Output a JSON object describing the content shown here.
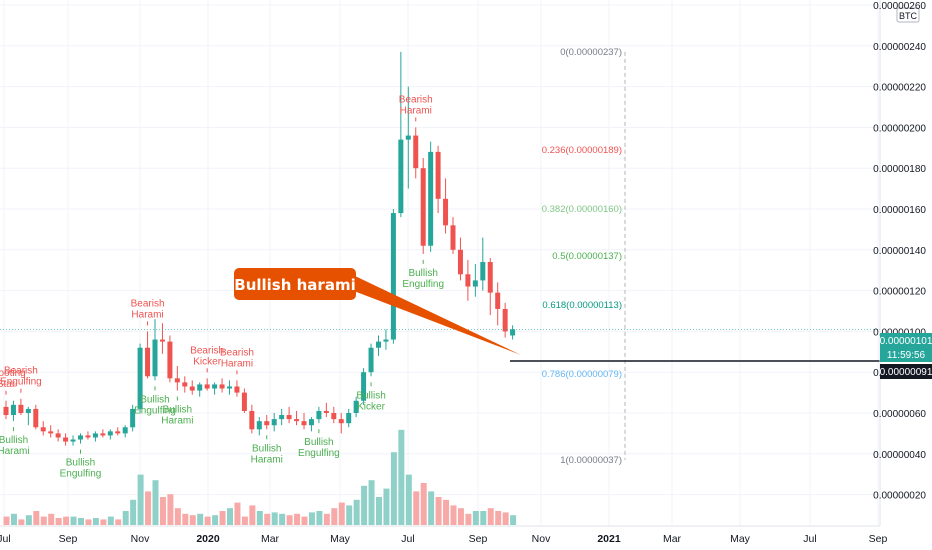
{
  "chart_data": {
    "type": "candlestick",
    "quote_unit": "BTC",
    "y_scale": "linear",
    "ylim": [
      1e-07,
      2.6e-06
    ],
    "y_ticks": [
      "0.00000020",
      "0.00000040",
      "0.00000060",
      "0.00000080",
      "0.00000100",
      "0.00000120",
      "0.00000140",
      "0.00000160",
      "0.00000180",
      "0.00000200",
      "0.00000220",
      "0.00000240",
      "0.00000260"
    ],
    "x_ticks": [
      "Jul",
      "Sep",
      "Nov",
      "2020",
      "Mar",
      "May",
      "Jul",
      "Sep",
      "Nov",
      "2021",
      "Mar",
      "May",
      "Jul",
      "Sep"
    ],
    "last_price_label": "0.00000101",
    "countdown_label": "11:59:56",
    "crosshair_price_label": "0.00000091",
    "colors": {
      "up": "#26a69a",
      "down": "#ef5350",
      "up_volume": "#8fd1c8",
      "down_volume": "#f7a9a7",
      "callout": "#e65100",
      "crosshair_label": "#131722"
    },
    "candles": [
      {
        "o": 6.3e-07,
        "h": 6.6e-07,
        "l": 5.7e-07,
        "c": 5.9e-07
      },
      {
        "o": 5.9e-07,
        "h": 6.6e-07,
        "l": 5.6e-07,
        "c": 6.4e-07
      },
      {
        "o": 6.4e-07,
        "h": 6.7e-07,
        "l": 5.9e-07,
        "c": 6e-07
      },
      {
        "o": 6e-07,
        "h": 6.3e-07,
        "l": 5.4e-07,
        "c": 6.2e-07
      },
      {
        "o": 6.2e-07,
        "h": 6.4e-07,
        "l": 5.2e-07,
        "c": 5.3e-07
      },
      {
        "o": 5.3e-07,
        "h": 5.6e-07,
        "l": 4.9e-07,
        "c": 5.1e-07
      },
      {
        "o": 5.1e-07,
        "h": 5.4e-07,
        "l": 4.8e-07,
        "c": 5e-07
      },
      {
        "o": 5e-07,
        "h": 5.2e-07,
        "l": 4.6e-07,
        "c": 4.8e-07
      },
      {
        "o": 4.8e-07,
        "h": 5e-07,
        "l": 4.4e-07,
        "c": 4.6e-07
      },
      {
        "o": 4.6e-07,
        "h": 4.9e-07,
        "l": 4.4e-07,
        "c": 4.7e-07
      },
      {
        "o": 4.7e-07,
        "h": 5e-07,
        "l": 4.5e-07,
        "c": 4.9e-07
      },
      {
        "o": 4.9e-07,
        "h": 5.1e-07,
        "l": 4.7e-07,
        "c": 4.8e-07
      },
      {
        "o": 4.8e-07,
        "h": 5.1e-07,
        "l": 4.6e-07,
        "c": 5e-07
      },
      {
        "o": 5e-07,
        "h": 5.2e-07,
        "l": 4.8e-07,
        "c": 4.9e-07
      },
      {
        "o": 4.9e-07,
        "h": 5.2e-07,
        "l": 4.7e-07,
        "c": 5.1e-07
      },
      {
        "o": 5.1e-07,
        "h": 5.3e-07,
        "l": 4.9e-07,
        "c": 5e-07
      },
      {
        "o": 5e-07,
        "h": 5.4e-07,
        "l": 4.8e-07,
        "c": 5.3e-07
      },
      {
        "o": 5.3e-07,
        "h": 6.4e-07,
        "l": 5.1e-07,
        "c": 6.2e-07
      },
      {
        "o": 6.2e-07,
        "h": 9.4e-07,
        "l": 6e-07,
        "c": 9.2e-07
      },
      {
        "o": 9.2e-07,
        "h": 1e-06,
        "l": 7.7e-07,
        "c": 7.8e-07
      },
      {
        "o": 7.8e-07,
        "h": 1.06e-06,
        "l": 7.6e-07,
        "c": 9.6e-07
      },
      {
        "o": 9.6e-07,
        "h": 1.04e-06,
        "l": 8.9e-07,
        "c": 9.5e-07
      },
      {
        "o": 9.5e-07,
        "h": 9.8e-07,
        "l": 7.5e-07,
        "c": 7.7e-07
      },
      {
        "o": 7.7e-07,
        "h": 8.3e-07,
        "l": 7.1e-07,
        "c": 7.5e-07
      },
      {
        "o": 7.5e-07,
        "h": 7.8e-07,
        "l": 7e-07,
        "c": 7.3e-07
      },
      {
        "o": 7.3e-07,
        "h": 7.6e-07,
        "l": 6.9e-07,
        "c": 7.1e-07
      },
      {
        "o": 7.1e-07,
        "h": 7.5e-07,
        "l": 6.8e-07,
        "c": 7.4e-07
      },
      {
        "o": 7.4e-07,
        "h": 7.7e-07,
        "l": 7.1e-07,
        "c": 7.2e-07
      },
      {
        "o": 7.2e-07,
        "h": 7.5e-07,
        "l": 6.9e-07,
        "c": 7.4e-07
      },
      {
        "o": 7.4e-07,
        "h": 7.7e-07,
        "l": 7e-07,
        "c": 7.2e-07
      },
      {
        "o": 7.2e-07,
        "h": 7.6e-07,
        "l": 6.9e-07,
        "c": 7.3e-07
      },
      {
        "o": 7.3e-07,
        "h": 7.6e-07,
        "l": 6.8e-07,
        "c": 7e-07
      },
      {
        "o": 7e-07,
        "h": 7.2e-07,
        "l": 6e-07,
        "c": 6.1e-07
      },
      {
        "o": 6.1e-07,
        "h": 6.4e-07,
        "l": 5e-07,
        "c": 5.2e-07
      },
      {
        "o": 5.2e-07,
        "h": 5.8e-07,
        "l": 4.9e-07,
        "c": 5.6e-07
      },
      {
        "o": 5.6e-07,
        "h": 5.9e-07,
        "l": 5.2e-07,
        "c": 5.4e-07
      },
      {
        "o": 5.4e-07,
        "h": 6e-07,
        "l": 5.1e-07,
        "c": 5.7e-07
      },
      {
        "o": 5.7e-07,
        "h": 6.2e-07,
        "l": 5.4e-07,
        "c": 5.9e-07
      },
      {
        "o": 5.9e-07,
        "h": 6.3e-07,
        "l": 5.5e-07,
        "c": 5.7e-07
      },
      {
        "o": 5.7e-07,
        "h": 6.1e-07,
        "l": 5.4e-07,
        "c": 5.6e-07
      },
      {
        "o": 5.6e-07,
        "h": 6e-07,
        "l": 5.2e-07,
        "c": 5.4e-07
      },
      {
        "o": 5.4e-07,
        "h": 5.8e-07,
        "l": 5.1e-07,
        "c": 5.7e-07
      },
      {
        "o": 5.7e-07,
        "h": 6.3e-07,
        "l": 5.5e-07,
        "c": 6.1e-07
      },
      {
        "o": 6.1e-07,
        "h": 6.5e-07,
        "l": 5.8e-07,
        "c": 6e-07
      },
      {
        "o": 6e-07,
        "h": 6.3e-07,
        "l": 5.5e-07,
        "c": 5.7e-07
      },
      {
        "o": 5.7e-07,
        "h": 6e-07,
        "l": 5e-07,
        "c": 5.5e-07
      },
      {
        "o": 5.5e-07,
        "h": 6.2e-07,
        "l": 5.3e-07,
        "c": 6e-07
      },
      {
        "o": 6e-07,
        "h": 6.8e-07,
        "l": 5.8e-07,
        "c": 6.6e-07
      },
      {
        "o": 6.6e-07,
        "h": 8.2e-07,
        "l": 6.4e-07,
        "c": 8e-07
      },
      {
        "o": 8e-07,
        "h": 9.4e-07,
        "l": 7.8e-07,
        "c": 9.2e-07
      },
      {
        "o": 9.2e-07,
        "h": 9.8e-07,
        "l": 8.8e-07,
        "c": 9.5e-07
      },
      {
        "o": 9.5e-07,
        "h": 1.01e-06,
        "l": 9.1e-07,
        "c": 9.6e-07
      },
      {
        "o": 9.6e-07,
        "h": 1.6e-06,
        "l": 9.4e-07,
        "c": 1.58e-06
      },
      {
        "o": 1.58e-06,
        "h": 2.37e-06,
        "l": 1.56e-06,
        "c": 1.94e-06
      },
      {
        "o": 1.94e-06,
        "h": 2.2e-06,
        "l": 1.7e-06,
        "c": 1.96e-06
      },
      {
        "o": 1.96e-06,
        "h": 2e-06,
        "l": 1.75e-06,
        "c": 1.8e-06
      },
      {
        "o": 1.8e-06,
        "h": 1.85e-06,
        "l": 1.38e-06,
        "c": 1.42e-06
      },
      {
        "o": 1.42e-06,
        "h": 1.93e-06,
        "l": 1.39e-06,
        "c": 1.88e-06
      },
      {
        "o": 1.88e-06,
        "h": 1.91e-06,
        "l": 1.58e-06,
        "c": 1.65e-06
      },
      {
        "o": 1.65e-06,
        "h": 1.75e-06,
        "l": 1.48e-06,
        "c": 1.52e-06
      },
      {
        "o": 1.52e-06,
        "h": 1.56e-06,
        "l": 1.38e-06,
        "c": 1.4e-06
      },
      {
        "o": 1.4e-06,
        "h": 1.46e-06,
        "l": 1.25e-06,
        "c": 1.28e-06
      },
      {
        "o": 1.28e-06,
        "h": 1.35e-06,
        "l": 1.15e-06,
        "c": 1.22e-06
      },
      {
        "o": 1.22e-06,
        "h": 1.33e-06,
        "l": 1.17e-06,
        "c": 1.25e-06
      },
      {
        "o": 1.25e-06,
        "h": 1.46e-06,
        "l": 1.2e-06,
        "c": 1.34e-06
      },
      {
        "o": 1.34e-06,
        "h": 1.36e-06,
        "l": 1.08e-06,
        "c": 1.19e-06
      },
      {
        "o": 1.19e-06,
        "h": 1.24e-06,
        "l": 1.03e-06,
        "c": 1.11e-06
      },
      {
        "o": 1.11e-06,
        "h": 1.14e-06,
        "l": 9.7e-07,
        "c": 1e-06
      },
      {
        "o": 9.8e-07,
        "h": 1.03e-06,
        "l": 9.6e-07,
        "c": 1.01e-06
      }
    ],
    "volume": [
      {
        "v": 0.3,
        "up": false
      },
      {
        "v": 0.4,
        "up": true
      },
      {
        "v": 0.2,
        "up": false
      },
      {
        "v": 0.35,
        "up": true
      },
      {
        "v": 0.5,
        "up": false
      },
      {
        "v": 0.3,
        "up": false
      },
      {
        "v": 0.4,
        "up": false
      },
      {
        "v": 0.25,
        "up": false
      },
      {
        "v": 0.3,
        "up": false
      },
      {
        "v": 0.3,
        "up": true
      },
      {
        "v": 0.25,
        "up": true
      },
      {
        "v": 0.2,
        "up": false
      },
      {
        "v": 0.25,
        "up": true
      },
      {
        "v": 0.2,
        "up": false
      },
      {
        "v": 0.3,
        "up": true
      },
      {
        "v": 0.2,
        "up": false
      },
      {
        "v": 0.5,
        "up": true
      },
      {
        "v": 0.9,
        "up": true
      },
      {
        "v": 1.8,
        "up": true
      },
      {
        "v": 1.2,
        "up": false
      },
      {
        "v": 1.6,
        "up": true
      },
      {
        "v": 1.0,
        "up": false
      },
      {
        "v": 1.1,
        "up": false
      },
      {
        "v": 0.6,
        "up": false
      },
      {
        "v": 0.4,
        "up": false
      },
      {
        "v": 0.35,
        "up": false
      },
      {
        "v": 0.4,
        "up": true
      },
      {
        "v": 0.3,
        "up": false
      },
      {
        "v": 0.35,
        "up": true
      },
      {
        "v": 0.5,
        "up": false
      },
      {
        "v": 0.6,
        "up": true
      },
      {
        "v": 0.8,
        "up": false
      },
      {
        "v": 0.3,
        "up": false
      },
      {
        "v": 0.7,
        "up": false
      },
      {
        "v": 0.5,
        "up": true
      },
      {
        "v": 0.4,
        "up": false
      },
      {
        "v": 0.45,
        "up": true
      },
      {
        "v": 0.4,
        "up": true
      },
      {
        "v": 0.35,
        "up": false
      },
      {
        "v": 0.4,
        "up": false
      },
      {
        "v": 0.3,
        "up": false
      },
      {
        "v": 0.45,
        "up": true
      },
      {
        "v": 0.5,
        "up": true
      },
      {
        "v": 0.4,
        "up": false
      },
      {
        "v": 0.6,
        "up": false
      },
      {
        "v": 0.8,
        "up": false
      },
      {
        "v": 0.7,
        "up": true
      },
      {
        "v": 0.9,
        "up": true
      },
      {
        "v": 1.4,
        "up": true
      },
      {
        "v": 1.6,
        "up": true
      },
      {
        "v": 1.0,
        "up": true
      },
      {
        "v": 1.3,
        "up": true
      },
      {
        "v": 2.6,
        "up": true
      },
      {
        "v": 3.4,
        "up": true
      },
      {
        "v": 1.8,
        "up": true
      },
      {
        "v": 1.2,
        "up": false
      },
      {
        "v": 1.5,
        "up": false
      },
      {
        "v": 1.2,
        "up": true
      },
      {
        "v": 1.0,
        "up": false
      },
      {
        "v": 0.9,
        "up": false
      },
      {
        "v": 0.7,
        "up": false
      },
      {
        "v": 0.6,
        "up": false
      },
      {
        "v": 0.4,
        "up": false
      },
      {
        "v": 0.5,
        "up": true
      },
      {
        "v": 0.5,
        "up": true
      },
      {
        "v": 0.6,
        "up": false
      },
      {
        "v": 0.5,
        "up": false
      },
      {
        "v": 0.45,
        "up": false
      },
      {
        "v": 0.35,
        "up": true
      }
    ],
    "fib_levels": [
      {
        "label": "0(0.00000237)",
        "price": 2.37e-06,
        "color": "#787b86"
      },
      {
        "label": "0.236(0.00000189)",
        "price": 1.89e-06,
        "color": "#ef5350"
      },
      {
        "label": "0.382(0.00000160)",
        "price": 1.6e-06,
        "color": "#81c784"
      },
      {
        "label": "0.5(0.00000137)",
        "price": 1.37e-06,
        "color": "#4caf50"
      },
      {
        "label": "0.618(0.00000113)",
        "price": 1.13e-06,
        "color": "#089981"
      },
      {
        "label": "0.786(0.00000079)",
        "price": 7.9e-07,
        "color": "#64b5f6"
      },
      {
        "label": "1(0.00000037)",
        "price": 3.7e-07,
        "color": "#787b86"
      }
    ],
    "patterns": [
      {
        "lines": [
          "Shooting",
          "Star"
        ],
        "candle": 0,
        "pos": "above",
        "bearish": true
      },
      {
        "lines": [
          "Bearish",
          "Engulfing"
        ],
        "candle": 2,
        "pos": "above",
        "bearish": true
      },
      {
        "lines": [
          "Bullish",
          "Harami"
        ],
        "candle": 1,
        "pos": "below",
        "bearish": false
      },
      {
        "lines": [
          "Bullish",
          "Engulfing"
        ],
        "candle": 10,
        "pos": "below",
        "bearish": false
      },
      {
        "lines": [
          "Bearish",
          "Harami"
        ],
        "candle": 19,
        "pos": "above",
        "bearish": true
      },
      {
        "lines": [
          "Bullish",
          "Engulfing"
        ],
        "candle": 20,
        "pos": "below",
        "bearish": false
      },
      {
        "lines": [
          "Bullish",
          "Harami"
        ],
        "candle": 23,
        "pos": "below",
        "bearish": false
      },
      {
        "lines": [
          "Bearish",
          "Kicker"
        ],
        "candle": 27,
        "pos": "above",
        "bearish": true
      },
      {
        "lines": [
          "Bearish",
          "Harami"
        ],
        "candle": 31,
        "pos": "above",
        "bearish": true
      },
      {
        "lines": [
          "Bullish",
          "Harami"
        ],
        "candle": 35,
        "pos": "below",
        "bearish": false
      },
      {
        "lines": [
          "Bullish",
          "Engulfing"
        ],
        "candle": 42,
        "pos": "below",
        "bearish": false
      },
      {
        "lines": [
          "Bullish",
          "Kicker"
        ],
        "candle": 49,
        "pos": "below",
        "bearish": false
      },
      {
        "lines": [
          "Bearish",
          "Harami"
        ],
        "candle": 55,
        "pos": "above",
        "bearish": true
      },
      {
        "lines": [
          "Bullish",
          "Engulfing"
        ],
        "candle": 56,
        "pos": "below",
        "bearish": false
      }
    ],
    "annotation": "Bullish harami"
  }
}
